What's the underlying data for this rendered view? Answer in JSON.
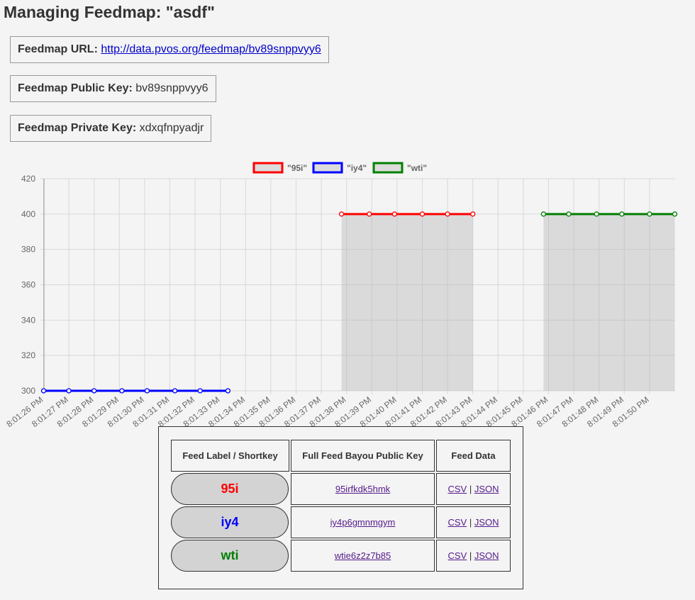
{
  "page": {
    "title": "Managing Feedmap: \"asdf\""
  },
  "feedmap": {
    "url_label": "Feedmap URL:",
    "url": "http://data.pvos.org/feedmap/bv89snppvyy6",
    "public_key_label": "Feedmap Public Key:",
    "public_key": "bv89snppvyy6",
    "private_key_label": "Feedmap Private Key:",
    "private_key": "xdxqfnpyadjr"
  },
  "chart_data": {
    "type": "line",
    "title": "",
    "xlabel": "",
    "ylabel": "",
    "ylim": [
      300,
      420
    ],
    "yticks": [
      300,
      320,
      340,
      360,
      380,
      400,
      420
    ],
    "grid": true,
    "legend_position": "top",
    "categories": [
      "8:01:26 PM",
      "8:01:27 PM",
      "8:01:28 PM",
      "8:01:29 PM",
      "8:01:30 PM",
      "8:01:31 PM",
      "8:01:32 PM",
      "8:01:33 PM",
      "8:01:34 PM",
      "8:01:35 PM",
      "8:01:36 PM",
      "8:01:37 PM",
      "8:01:38 PM",
      "8:01:39 PM",
      "8:01:40 PM",
      "8:01:41 PM",
      "8:01:42 PM",
      "8:01:43 PM",
      "8:01:44 PM",
      "8:01:45 PM",
      "8:01:46 PM",
      "8:01:47 PM",
      "8:01:48 PM",
      "8:01:49 PM",
      "8:01:50 PM"
    ],
    "series": [
      {
        "name": "\"95i\"",
        "color": "#ff0000",
        "filled": true,
        "points": [
          {
            "x": "8:01:37.8 PM",
            "y": 400
          },
          {
            "x": "8:01:38.9 PM",
            "y": 400
          },
          {
            "x": "8:01:39.9 PM",
            "y": 400
          },
          {
            "x": "8:01:41.0 PM",
            "y": 400
          },
          {
            "x": "8:01:42.0 PM",
            "y": 400
          },
          {
            "x": "8:01:43.0 PM",
            "y": 400
          }
        ]
      },
      {
        "name": "\"iy4\"",
        "color": "#0000ff",
        "filled": true,
        "points": [
          {
            "x": "8:01:26.0 PM",
            "y": 300
          },
          {
            "x": "8:01:27.0 PM",
            "y": 300
          },
          {
            "x": "8:01:28.0 PM",
            "y": 300
          },
          {
            "x": "8:01:29.1 PM",
            "y": 300
          },
          {
            "x": "8:01:30.1 PM",
            "y": 300
          },
          {
            "x": "8:01:31.2 PM",
            "y": 300
          },
          {
            "x": "8:01:32.2 PM",
            "y": 300
          },
          {
            "x": "8:01:33.3 PM",
            "y": 300
          }
        ]
      },
      {
        "name": "\"wti\"",
        "color": "#008000",
        "filled": true,
        "points": [
          {
            "x": "8:01:45.8 PM",
            "y": 400
          },
          {
            "x": "8:01:46.8 PM",
            "y": 400
          },
          {
            "x": "8:01:47.9 PM",
            "y": 400
          },
          {
            "x": "8:01:48.9 PM",
            "y": 400
          },
          {
            "x": "8:01:50.0 PM",
            "y": 400
          },
          {
            "x": "8:01:51.0 PM",
            "y": 400
          }
        ]
      }
    ]
  },
  "feeds_table": {
    "headers": [
      "Feed Label / Shortkey",
      "Full Feed Bayou Public Key",
      "Feed Data"
    ],
    "rows": [
      {
        "label": "95i",
        "color": "#ff0000",
        "public_key": "95irfkdk5hmk",
        "csv": "CSV",
        "sep": "|",
        "json": "JSON"
      },
      {
        "label": "iy4",
        "color": "#0000ff",
        "public_key": "iy4p6gmnmgym",
        "csv": "CSV",
        "sep": "|",
        "json": "JSON"
      },
      {
        "label": "wti",
        "color": "#008000",
        "public_key": "wtie6z2z7b85",
        "csv": "CSV",
        "sep": "|",
        "json": "JSON"
      }
    ]
  }
}
